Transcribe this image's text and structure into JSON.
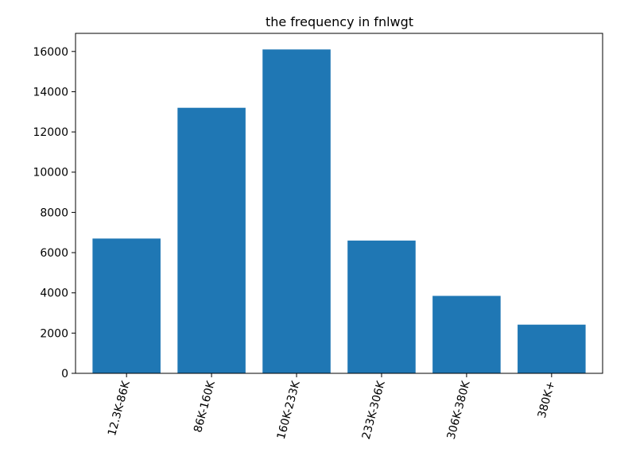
{
  "chart_data": {
    "type": "bar",
    "title": "the frequency in fnlwgt",
    "xlabel": "",
    "ylabel": "",
    "categories": [
      "12.3K-86K",
      "86K-160K",
      "160K-233K",
      "233K-306K",
      "306K-380K",
      "380K+"
    ],
    "values": [
      6700,
      13200,
      16100,
      6600,
      3850,
      2420
    ],
    "ylim": [
      0,
      16900
    ],
    "yticks": [
      0,
      2000,
      4000,
      6000,
      8000,
      10000,
      12000,
      14000,
      16000
    ],
    "x_tick_rotation_deg": 75,
    "bar_color": "#1f77b4",
    "grid": false,
    "legend": "none"
  }
}
